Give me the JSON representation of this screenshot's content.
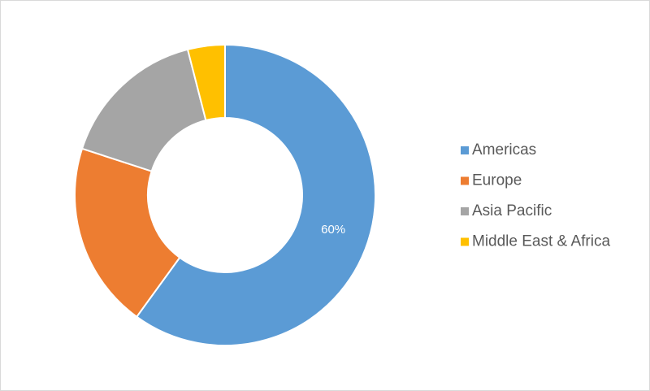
{
  "chart_data": {
    "type": "donut",
    "categories": [
      "Americas",
      "Europe",
      "Asia Pacific",
      "Middle East & Africa"
    ],
    "values": [
      60,
      20,
      16,
      4
    ],
    "value_labels": [
      "60%",
      null,
      null,
      null
    ],
    "colors": [
      "#5b9bd5",
      "#ed7d31",
      "#a5a5a5",
      "#ffc000"
    ],
    "legend": "right"
  }
}
